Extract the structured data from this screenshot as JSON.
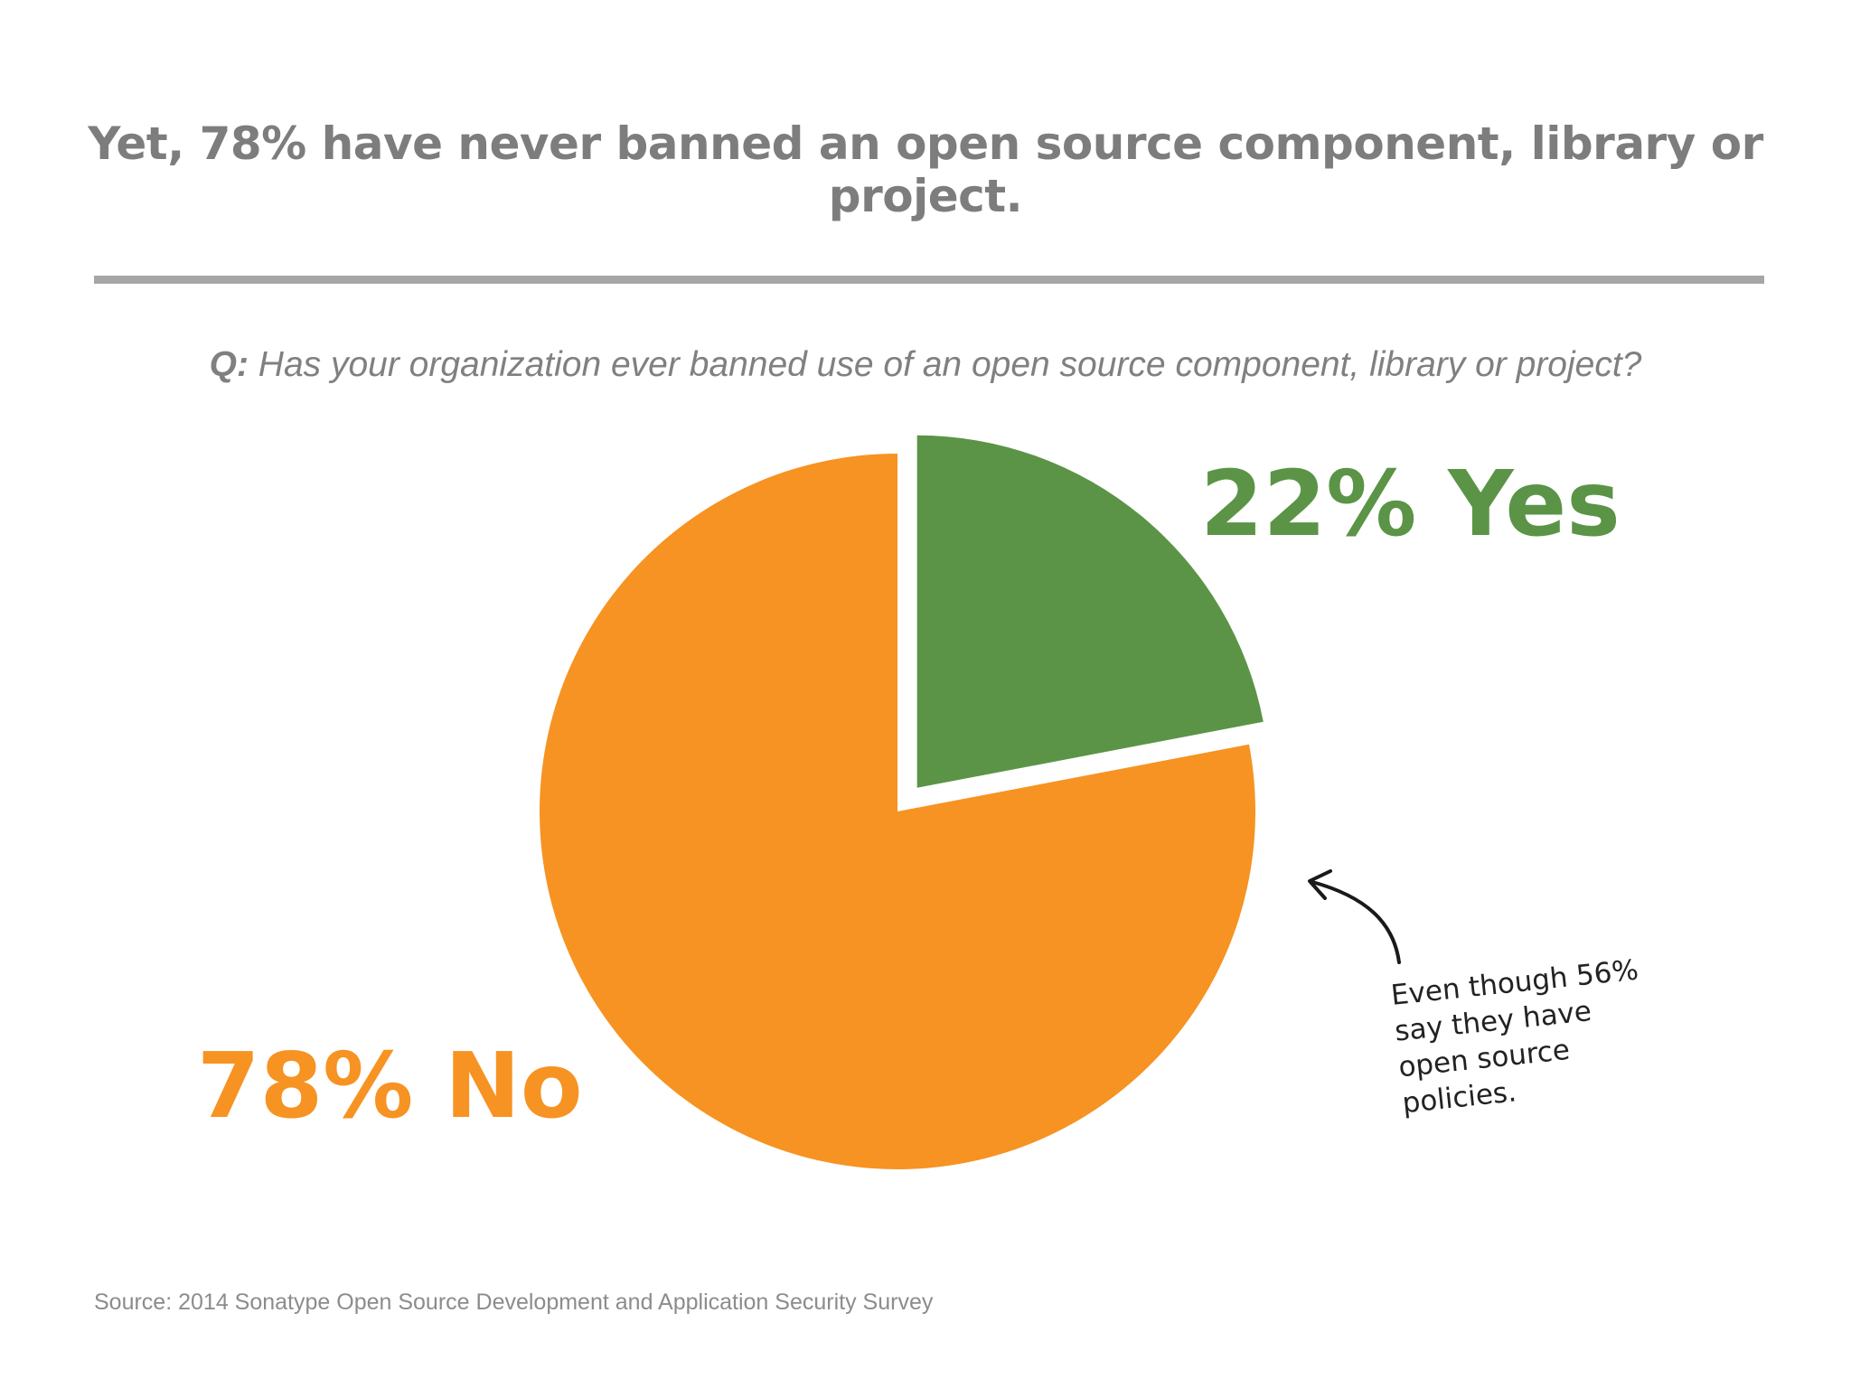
{
  "slide": {
    "title": "Yet, 78% have never banned an open source component, library or project.",
    "question_prefix": "Q:",
    "question_text": "Has your organization ever banned use of an open source component, library or project?",
    "source": "Source: 2014 Sonatype Open Source Development and Application Security Survey"
  },
  "chart_data": {
    "type": "pie",
    "slices": [
      {
        "label": "22% Yes",
        "value": 22,
        "color": "#5b9446",
        "exploded": true
      },
      {
        "label": "78% No",
        "value": 78,
        "color": "#f69322",
        "exploded": false
      }
    ],
    "annotation": {
      "lines": [
        "Even though 56%",
        "say they have",
        "open source",
        "policies."
      ]
    }
  },
  "colors": {
    "title": "#7d7d7d",
    "divider": "#a6a6a6",
    "yes": "#5b9446",
    "no": "#f69322"
  }
}
